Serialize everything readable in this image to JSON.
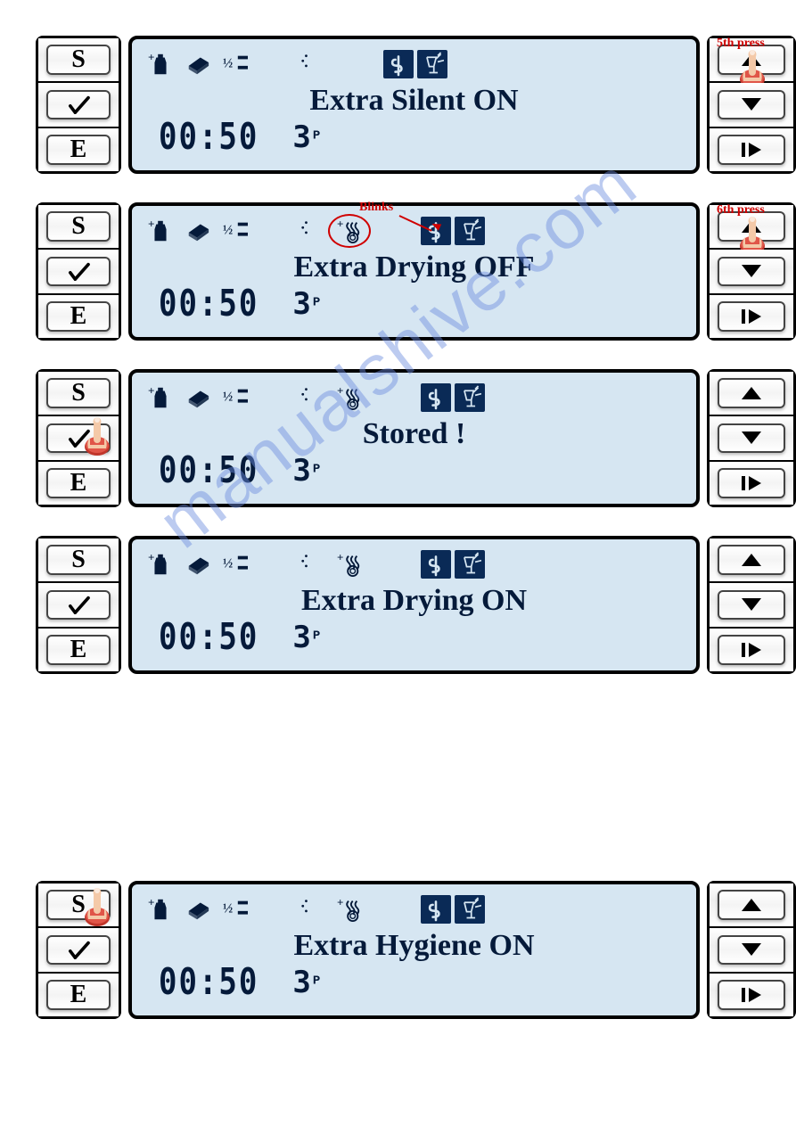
{
  "watermark": "manualshive.com",
  "left_button_labels": {
    "s": "S",
    "check": "✓",
    "e": "E"
  },
  "panels": [
    {
      "main_text": "Extra Silent ON",
      "time": "00:50",
      "program": "3",
      "program_suffix": "P",
      "icons": [
        "bottle-plus",
        "tablet",
        "half-load",
        "moon"
      ],
      "show_drying_icon": false,
      "red_label": "5th press",
      "red_label_pos": "top-up-button",
      "blinks_label": null,
      "finger_on": "up-button",
      "drying_circle": false
    },
    {
      "main_text": "Extra Drying OFF",
      "time": "00:50",
      "program": "3",
      "program_suffix": "P",
      "icons": [
        "bottle-plus",
        "tablet",
        "half-load",
        "moon",
        "drying-plus"
      ],
      "show_drying_icon": true,
      "red_label": "6th press",
      "red_label_pos": "top-up-button",
      "blinks_label": "Blinks",
      "finger_on": "up-button",
      "drying_circle": true
    },
    {
      "main_text": "Stored !",
      "time": "00:50",
      "program": "3",
      "program_suffix": "P",
      "icons": [
        "bottle-plus",
        "tablet",
        "half-load",
        "moon",
        "drying-plus"
      ],
      "show_drying_icon": true,
      "red_label": null,
      "blinks_label": null,
      "finger_on": "check-button",
      "drying_circle": false
    },
    {
      "main_text": "Extra Drying ON",
      "time": "00:50",
      "program": "3",
      "program_suffix": "P",
      "icons": [
        "bottle-plus",
        "tablet",
        "half-load",
        "moon",
        "drying-plus"
      ],
      "show_drying_icon": true,
      "red_label": null,
      "blinks_label": null,
      "finger_on": null,
      "drying_circle": false
    },
    {
      "main_text": "Extra Hygiene ON",
      "time": "00:50",
      "program": "3",
      "program_suffix": "P",
      "icons": [
        "bottle-plus",
        "tablet",
        "half-load",
        "moon",
        "drying-plus"
      ],
      "show_drying_icon": true,
      "red_label": null,
      "blinks_label": null,
      "finger_on": "s-button",
      "drying_circle": false,
      "large_gap_before": true
    }
  ],
  "colors": {
    "lcd_bg": "#d6e6f2",
    "lcd_text": "#051a3a",
    "badge_bg": "#0a2a56",
    "red": "#d00000",
    "watermark": "#6d8de0"
  }
}
